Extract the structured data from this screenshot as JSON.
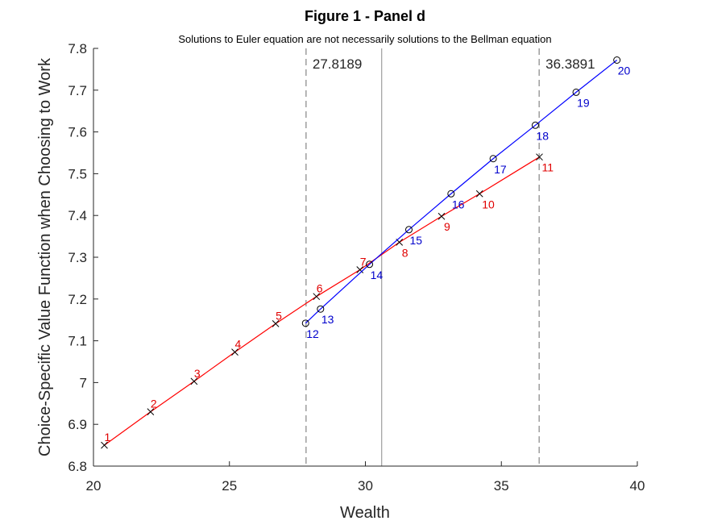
{
  "chart_data": {
    "type": "line",
    "title": "Figure 1 - Panel d",
    "subtitle": "Solutions to Euler equation are not necessarily solutions to the Bellman equation",
    "xlabel": "Wealth",
    "ylabel": "Choice-Specific Value Function when Choosing to Work",
    "xlim": [
      20,
      40
    ],
    "ylim": [
      6.8,
      7.8
    ],
    "xticks": [
      "20",
      "25",
      "30",
      "35",
      "40"
    ],
    "yticks": [
      "6.8",
      "6.9",
      "7",
      "7.1",
      "7.2",
      "7.3",
      "7.4",
      "7.5",
      "7.6",
      "7.7",
      "7.8"
    ],
    "grid": false,
    "vlines": [
      {
        "x": 27.8189,
        "label": "27.8189",
        "style": "dashed"
      },
      {
        "x": 30.6,
        "label": "",
        "style": "solid"
      },
      {
        "x": 36.3891,
        "label": "36.3891",
        "style": "dashed"
      }
    ],
    "series": [
      {
        "color": "#ff0000",
        "marker": "x",
        "label_color": "#e00000",
        "points": [
          {
            "x": 20.4,
            "y": 6.85,
            "label": "1"
          },
          {
            "x": 22.1,
            "y": 6.93,
            "label": "2"
          },
          {
            "x": 23.7,
            "y": 7.003,
            "label": "3"
          },
          {
            "x": 25.2,
            "y": 7.073,
            "label": "4"
          },
          {
            "x": 26.7,
            "y": 7.141,
            "label": "5"
          },
          {
            "x": 28.2,
            "y": 7.206,
            "label": "6"
          },
          {
            "x": 29.8,
            "y": 7.27,
            "label": "7"
          },
          {
            "x": 31.25,
            "y": 7.336,
            "label": "8"
          },
          {
            "x": 32.8,
            "y": 7.398,
            "label": "9"
          },
          {
            "x": 34.2,
            "y": 7.452,
            "label": "10"
          },
          {
            "x": 36.4,
            "y": 7.54,
            "label": "11"
          }
        ]
      },
      {
        "color": "#0000ff",
        "marker": "o",
        "label_color": "#0000cc",
        "points": [
          {
            "x": 27.8,
            "y": 7.142,
            "label": "12"
          },
          {
            "x": 28.35,
            "y": 7.176,
            "label": "13"
          },
          {
            "x": 30.15,
            "y": 7.283,
            "label": "14"
          },
          {
            "x": 31.6,
            "y": 7.366,
            "label": "15"
          },
          {
            "x": 33.15,
            "y": 7.452,
            "label": "16"
          },
          {
            "x": 34.7,
            "y": 7.536,
            "label": "17"
          },
          {
            "x": 36.25,
            "y": 7.616,
            "label": "18"
          },
          {
            "x": 37.75,
            "y": 7.695,
            "label": "19"
          },
          {
            "x": 39.25,
            "y": 7.772,
            "label": "20"
          }
        ]
      }
    ]
  }
}
